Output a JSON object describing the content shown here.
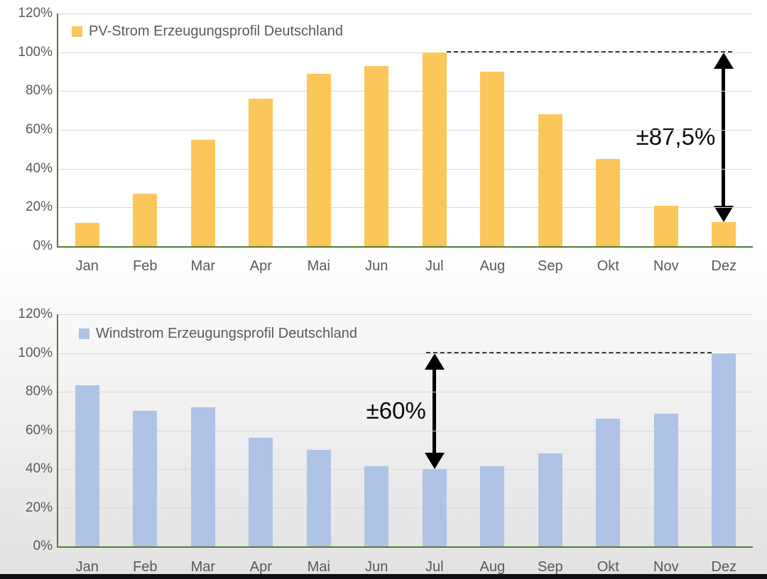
{
  "chart_data": [
    {
      "type": "bar",
      "legend": "PV-Strom Erzeugungsprofil Deutschland",
      "categories": [
        "Jan",
        "Feb",
        "Mar",
        "Apr",
        "Mai",
        "Jun",
        "Jul",
        "Aug",
        "Sep",
        "Okt",
        "Nov",
        "Dez"
      ],
      "values": [
        12,
        27,
        55,
        76,
        89,
        93,
        100,
        90,
        68,
        45,
        21,
        12.5
      ],
      "y_ticks": [
        "0%",
        "20%",
        "40%",
        "60%",
        "80%",
        "100%",
        "120%"
      ],
      "ylim": [
        0,
        120
      ],
      "grid": true,
      "legend_position": "top-left",
      "bar_color": "#FBC75B",
      "annotation": {
        "label": "±87,5%",
        "high_pct": 100,
        "low_pct": 12.5,
        "arrow_month": "Dez",
        "peak_month": "Jul"
      }
    },
    {
      "type": "bar",
      "legend": "Windstrom Erzeugungsprofil Deutschland",
      "categories": [
        "Jan",
        "Feb",
        "Mar",
        "Apr",
        "Mai",
        "Jun",
        "Jul",
        "Aug",
        "Sep",
        "Okt",
        "Nov",
        "Dez"
      ],
      "values": [
        83.5,
        70,
        72,
        56,
        50,
        41.5,
        40,
        41.5,
        48,
        66,
        68.5,
        100
      ],
      "y_ticks": [
        "0%",
        "20%",
        "40%",
        "60%",
        "80%",
        "100%",
        "120%"
      ],
      "ylim": [
        0,
        120
      ],
      "grid": true,
      "legend_position": "top-left",
      "bar_color": "#AEC3E6",
      "annotation": {
        "label": "±60%",
        "high_pct": 100,
        "low_pct": 40,
        "arrow_month": "Jul",
        "peak_month": "Dez"
      }
    }
  ],
  "colors": {
    "axis": "#567A33",
    "gridline": "#D9D9D9",
    "tick_text": "#595959",
    "annotation": "#0A0A0A",
    "bottom_edge_bar": "#0E0E14"
  }
}
